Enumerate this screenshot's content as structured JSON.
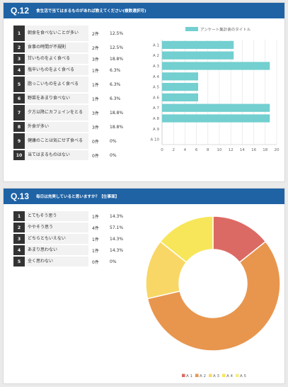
{
  "q12": {
    "number": "Q.12",
    "title": "食生活で当てはまるものがあれば教えてください(複数選択可)",
    "rows": [
      {
        "no": "1",
        "label": "朝食を食べないことが多い",
        "count": "2件",
        "pct": "12.5%"
      },
      {
        "no": "2",
        "label": "食事の時間が不規則",
        "count": "2件",
        "pct": "12.5%"
      },
      {
        "no": "3",
        "label": "甘いものをよく食べる",
        "count": "3件",
        "pct": "18.8%"
      },
      {
        "no": "4",
        "label": "塩辛いものをよく食べる",
        "count": "1件",
        "pct": "6.3%"
      },
      {
        "no": "5",
        "label": "脂っこいものをよく食べる",
        "count": "1件",
        "pct": "6.3%"
      },
      {
        "no": "6",
        "label": "野菜をあまり食べない",
        "count": "1件",
        "pct": "6.3%"
      },
      {
        "no": "7",
        "label": "夕方以降にカフェインをとる",
        "count": "3件",
        "pct": "18.8%"
      },
      {
        "no": "8",
        "label": "外食が多い",
        "count": "3件",
        "pct": "18.8%"
      },
      {
        "no": "9",
        "label": "健康のことは気にせず食べる",
        "count": "0件",
        "pct": "0%"
      },
      {
        "no": "10",
        "label": "当てはまるものはない",
        "count": "0件",
        "pct": "0%"
      }
    ]
  },
  "q13": {
    "number": "Q.13",
    "title": "毎日は充実していると思いますか？【仕事面】",
    "rows": [
      {
        "no": "1",
        "label": "とてもそう思う",
        "count": "1件",
        "pct": "14.3%"
      },
      {
        "no": "2",
        "label": "ややそう思う",
        "count": "4件",
        "pct": "57.1%"
      },
      {
        "no": "3",
        "label": "どちらともいえない",
        "count": "1件",
        "pct": "14.3%"
      },
      {
        "no": "4",
        "label": "あまり思わない",
        "count": "1件",
        "pct": "14.3%"
      },
      {
        "no": "5",
        "label": "全く思わない",
        "count": "0件",
        "pct": "0%"
      }
    ]
  },
  "chart_data": [
    {
      "type": "bar",
      "orientation": "horizontal",
      "legend": [
        "アンケート集計表のタイトル"
      ],
      "categories": [
        "A 1",
        "A 2",
        "A 3",
        "A 4",
        "A 5",
        "A 6",
        "A 7",
        "A 8",
        "A 9",
        "A 10"
      ],
      "values": [
        12.5,
        12.5,
        18.8,
        6.3,
        6.3,
        6.3,
        18.8,
        18.8,
        0,
        0
      ],
      "xticks": [
        "0",
        "2",
        "4",
        "6",
        "8",
        "10",
        "12",
        "14",
        "16",
        "18",
        "20"
      ],
      "xlim": [
        0,
        20
      ],
      "legend_position": "top",
      "grid": true,
      "color": "#73cfd0"
    },
    {
      "type": "pie",
      "donut": true,
      "categories": [
        "A 1",
        "A 2",
        "A 3",
        "A 4",
        "A 5"
      ],
      "values": [
        14.3,
        57.1,
        14.3,
        14.3,
        0
      ],
      "colors": [
        "#dc6a64",
        "#e8964e",
        "#f8d766",
        "#f7e65a",
        "#f2ee85"
      ],
      "legend_position": "bottom"
    }
  ]
}
